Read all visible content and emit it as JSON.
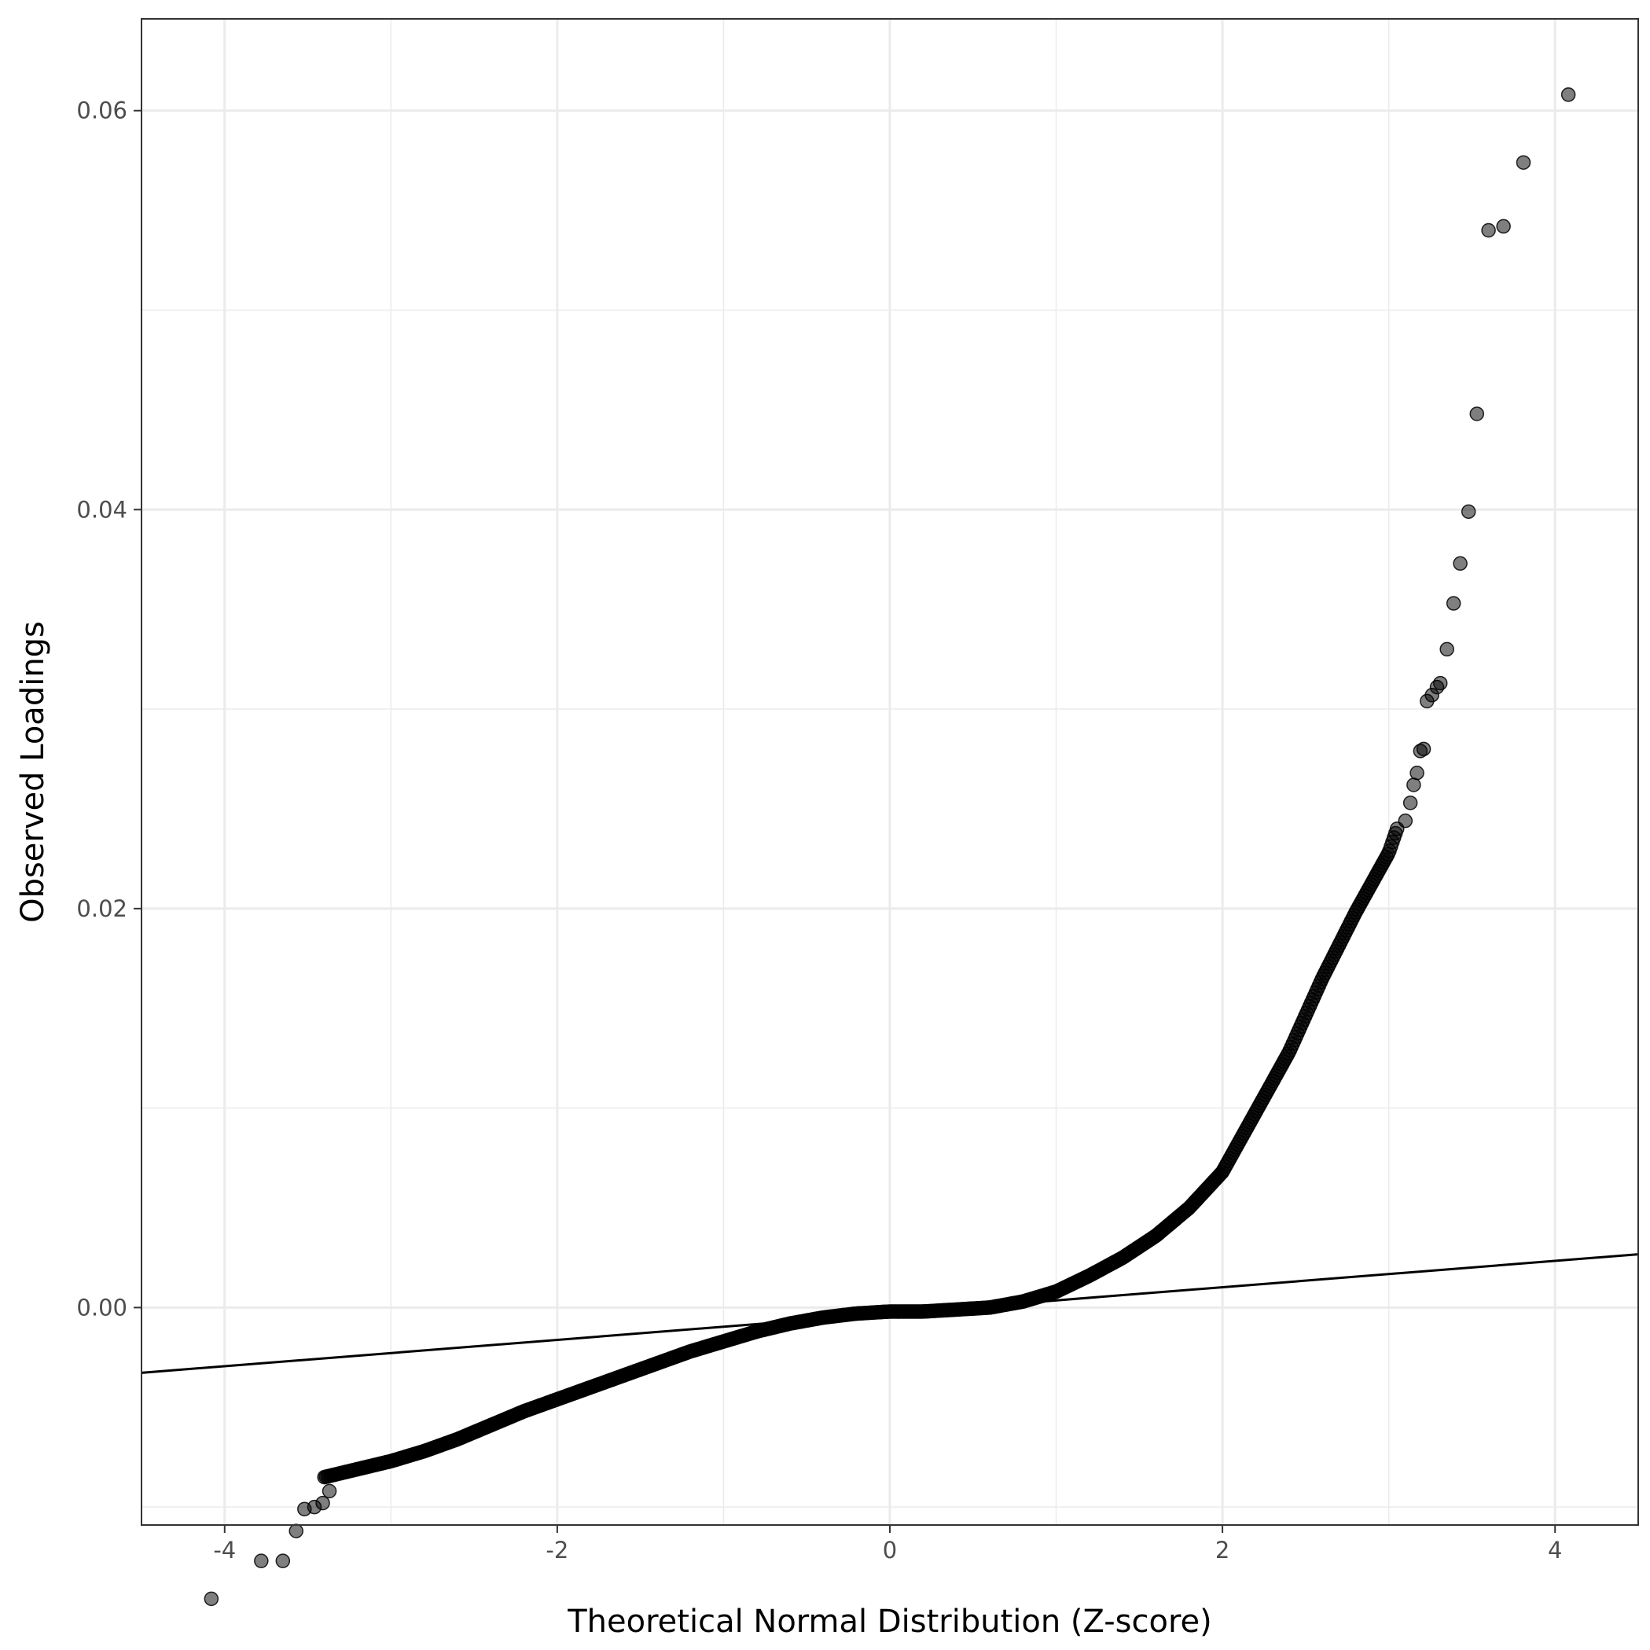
{
  "chart_data": {
    "type": "scatter",
    "xlabel": "Theoretical Normal Distribution (Z-score)",
    "ylabel": "Observed Loadings",
    "xlim": [
      -4.5,
      4.5
    ],
    "ylim": [
      -0.0109,
      0.0646
    ],
    "x_ticks": [
      -4,
      -2,
      0,
      2,
      4
    ],
    "x_tick_labels": [
      "-4",
      "-2",
      "0",
      "2",
      "4"
    ],
    "y_ticks": [
      0.0,
      0.02,
      0.04,
      0.06
    ],
    "y_tick_labels": [
      "0.00",
      "0.02",
      "0.04",
      "0.06"
    ],
    "grid": true,
    "point_color": "#000000",
    "point_opacity": 0.5,
    "reference_line": {
      "slope": 0.00066,
      "intercept": -0.0003,
      "color": "#000000"
    },
    "curve_anchors": {
      "x": [
        -3.4,
        -3.2,
        -3.0,
        -2.8,
        -2.6,
        -2.4,
        -2.2,
        -2.0,
        -1.8,
        -1.6,
        -1.4,
        -1.2,
        -1.0,
        -0.8,
        -0.6,
        -0.4,
        -0.2,
        0.0,
        0.2,
        0.4,
        0.6,
        0.8,
        1.0,
        1.2,
        1.4,
        1.6,
        1.8,
        2.0,
        2.2,
        2.4,
        2.6,
        2.8,
        3.0,
        3.05
      ],
      "y": [
        -0.0085,
        -0.0081,
        -0.0077,
        -0.0072,
        -0.0066,
        -0.0059,
        -0.0052,
        -0.0046,
        -0.004,
        -0.0034,
        -0.0028,
        -0.0022,
        -0.0017,
        -0.0012,
        -0.0008,
        -0.0005,
        -0.0003,
        -0.0002,
        -0.0002,
        -0.0001,
        0.0,
        0.0003,
        0.0008,
        0.0016,
        0.0025,
        0.0036,
        0.005,
        0.0068,
        0.0098,
        0.0128,
        0.0165,
        0.0198,
        0.0228,
        0.024
      ]
    },
    "outliers": {
      "x": [
        -4.08,
        -3.78,
        -3.65,
        -3.57,
        -3.52,
        -3.46,
        -3.41,
        -3.37,
        3.1,
        3.13,
        3.15,
        3.17,
        3.19,
        3.21,
        3.23,
        3.26,
        3.29,
        3.31,
        3.35,
        3.39,
        3.43,
        3.48,
        3.53,
        3.6,
        3.69,
        3.81,
        4.08
      ],
      "y": [
        -0.0146,
        -0.0127,
        -0.0127,
        -0.0112,
        -0.0101,
        -0.01,
        -0.0098,
        -0.0092,
        0.0244,
        0.0253,
        0.0262,
        0.0268,
        0.0279,
        0.028,
        0.0304,
        0.0307,
        0.0311,
        0.0313,
        0.033,
        0.0353,
        0.0373,
        0.0399,
        0.0448,
        0.054,
        0.0542,
        0.0574,
        0.0608
      ]
    }
  }
}
